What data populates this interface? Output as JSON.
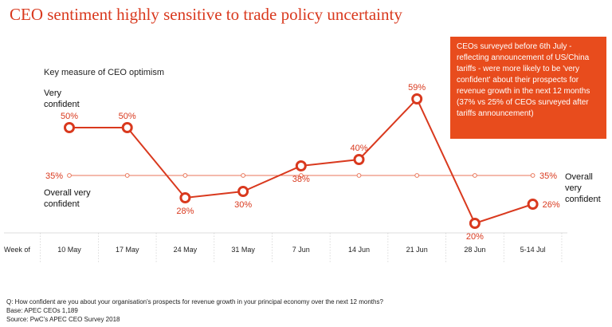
{
  "title": "CEO sentiment highly sensitive to trade policy uncertainty",
  "subtitle": "Key measure of CEO optimism",
  "top_label": "Very\nconfident",
  "bottom_label": "Overall very\nconfident",
  "right_label": "Overall\nvery\nconfident",
  "x_axis_prefix": "Week of",
  "callout": "CEOs surveyed before 6th July - reflecting announcement of US/China tariffs - were more likely to be 'very confident' about their prospects for revenue growth in the next 12 months (37% vs 25% of CEOs surveyed after tariffs announcement)",
  "footnotes": {
    "question": "Q: How confident are you about your organisation's prospects for revenue growth in your principal economy over the next 12 months?",
    "base": "Base: APEC CEOs 1,189",
    "source": "Source: PwC's APEC CEO Survey 2018"
  },
  "colors": {
    "accent": "#d9391e",
    "callout_bg": "#e84c1d",
    "baseline": "#e9765a"
  },
  "chart_data": {
    "type": "line",
    "categories": [
      "10 May",
      "17 May",
      "24 May",
      "31 May",
      "7 Jun",
      "14 Jun",
      "21 Jun",
      "28 Jun",
      "5-14 Jul"
    ],
    "series": [
      {
        "values": [
          50,
          50,
          28,
          30,
          38,
          40,
          59,
          20,
          26
        ],
        "labels": [
          "50%",
          "50%",
          "28%",
          "30%",
          "38%",
          "40%",
          "59%",
          "20%",
          "26%"
        ]
      }
    ],
    "reference_line": {
      "value": 35,
      "label": "35%"
    },
    "ylim": [
      15,
      65
    ],
    "grid": false
  }
}
